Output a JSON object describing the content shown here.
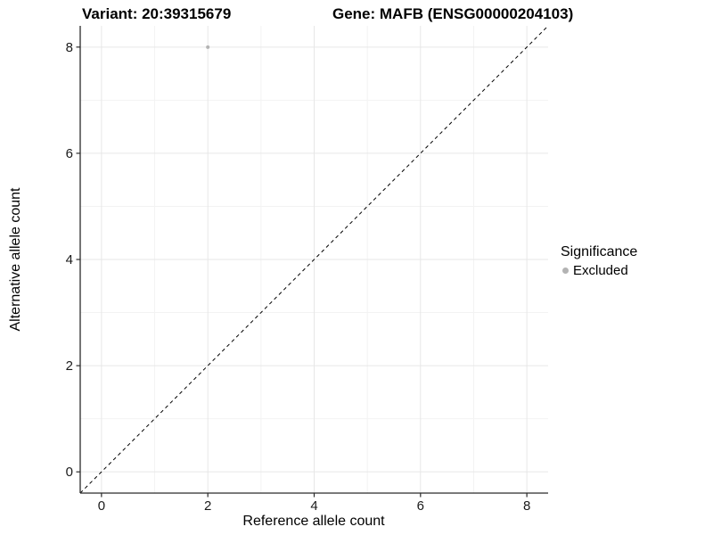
{
  "titles": {
    "variant": "Variant: 20:39315679",
    "gene": "Gene: MAFB (ENSG00000204103)"
  },
  "colors": {
    "point": "#b3b3b3",
    "grid_major": "#e7e7e7",
    "grid_minor": "#f3f3f3",
    "axis_line": "#2a2a2a",
    "tick_label": "#1a1a1a",
    "reference_line": "#000000"
  },
  "chart_data": {
    "type": "scatter",
    "title": "Variant: 20:39315679   Gene: MAFB (ENSG00000204103)",
    "xlabel": "Reference allele count",
    "ylabel": "Alternative allele count",
    "xlim": [
      -0.4,
      8.4
    ],
    "ylim": [
      -0.4,
      8.4
    ],
    "x_ticks": [
      0,
      2,
      4,
      6,
      8
    ],
    "y_ticks": [
      0,
      2,
      4,
      6,
      8
    ],
    "x_minor_ticks": [
      1,
      3,
      5,
      7
    ],
    "y_minor_ticks": [
      1,
      3,
      5,
      7
    ],
    "grid": true,
    "series": [
      {
        "name": "Excluded",
        "color": "#b3b3b3",
        "points": [
          {
            "x": 2,
            "y": 8
          }
        ]
      }
    ],
    "reference_line": {
      "type": "identity",
      "slope": 1,
      "intercept": 0,
      "style": "dashed",
      "from": [
        -0.4,
        -0.4
      ],
      "to": [
        8.4,
        8.4
      ]
    },
    "legend": {
      "title": "Significance",
      "position": "right",
      "items": [
        {
          "label": "Excluded",
          "color": "#b3b3b3"
        }
      ]
    }
  }
}
